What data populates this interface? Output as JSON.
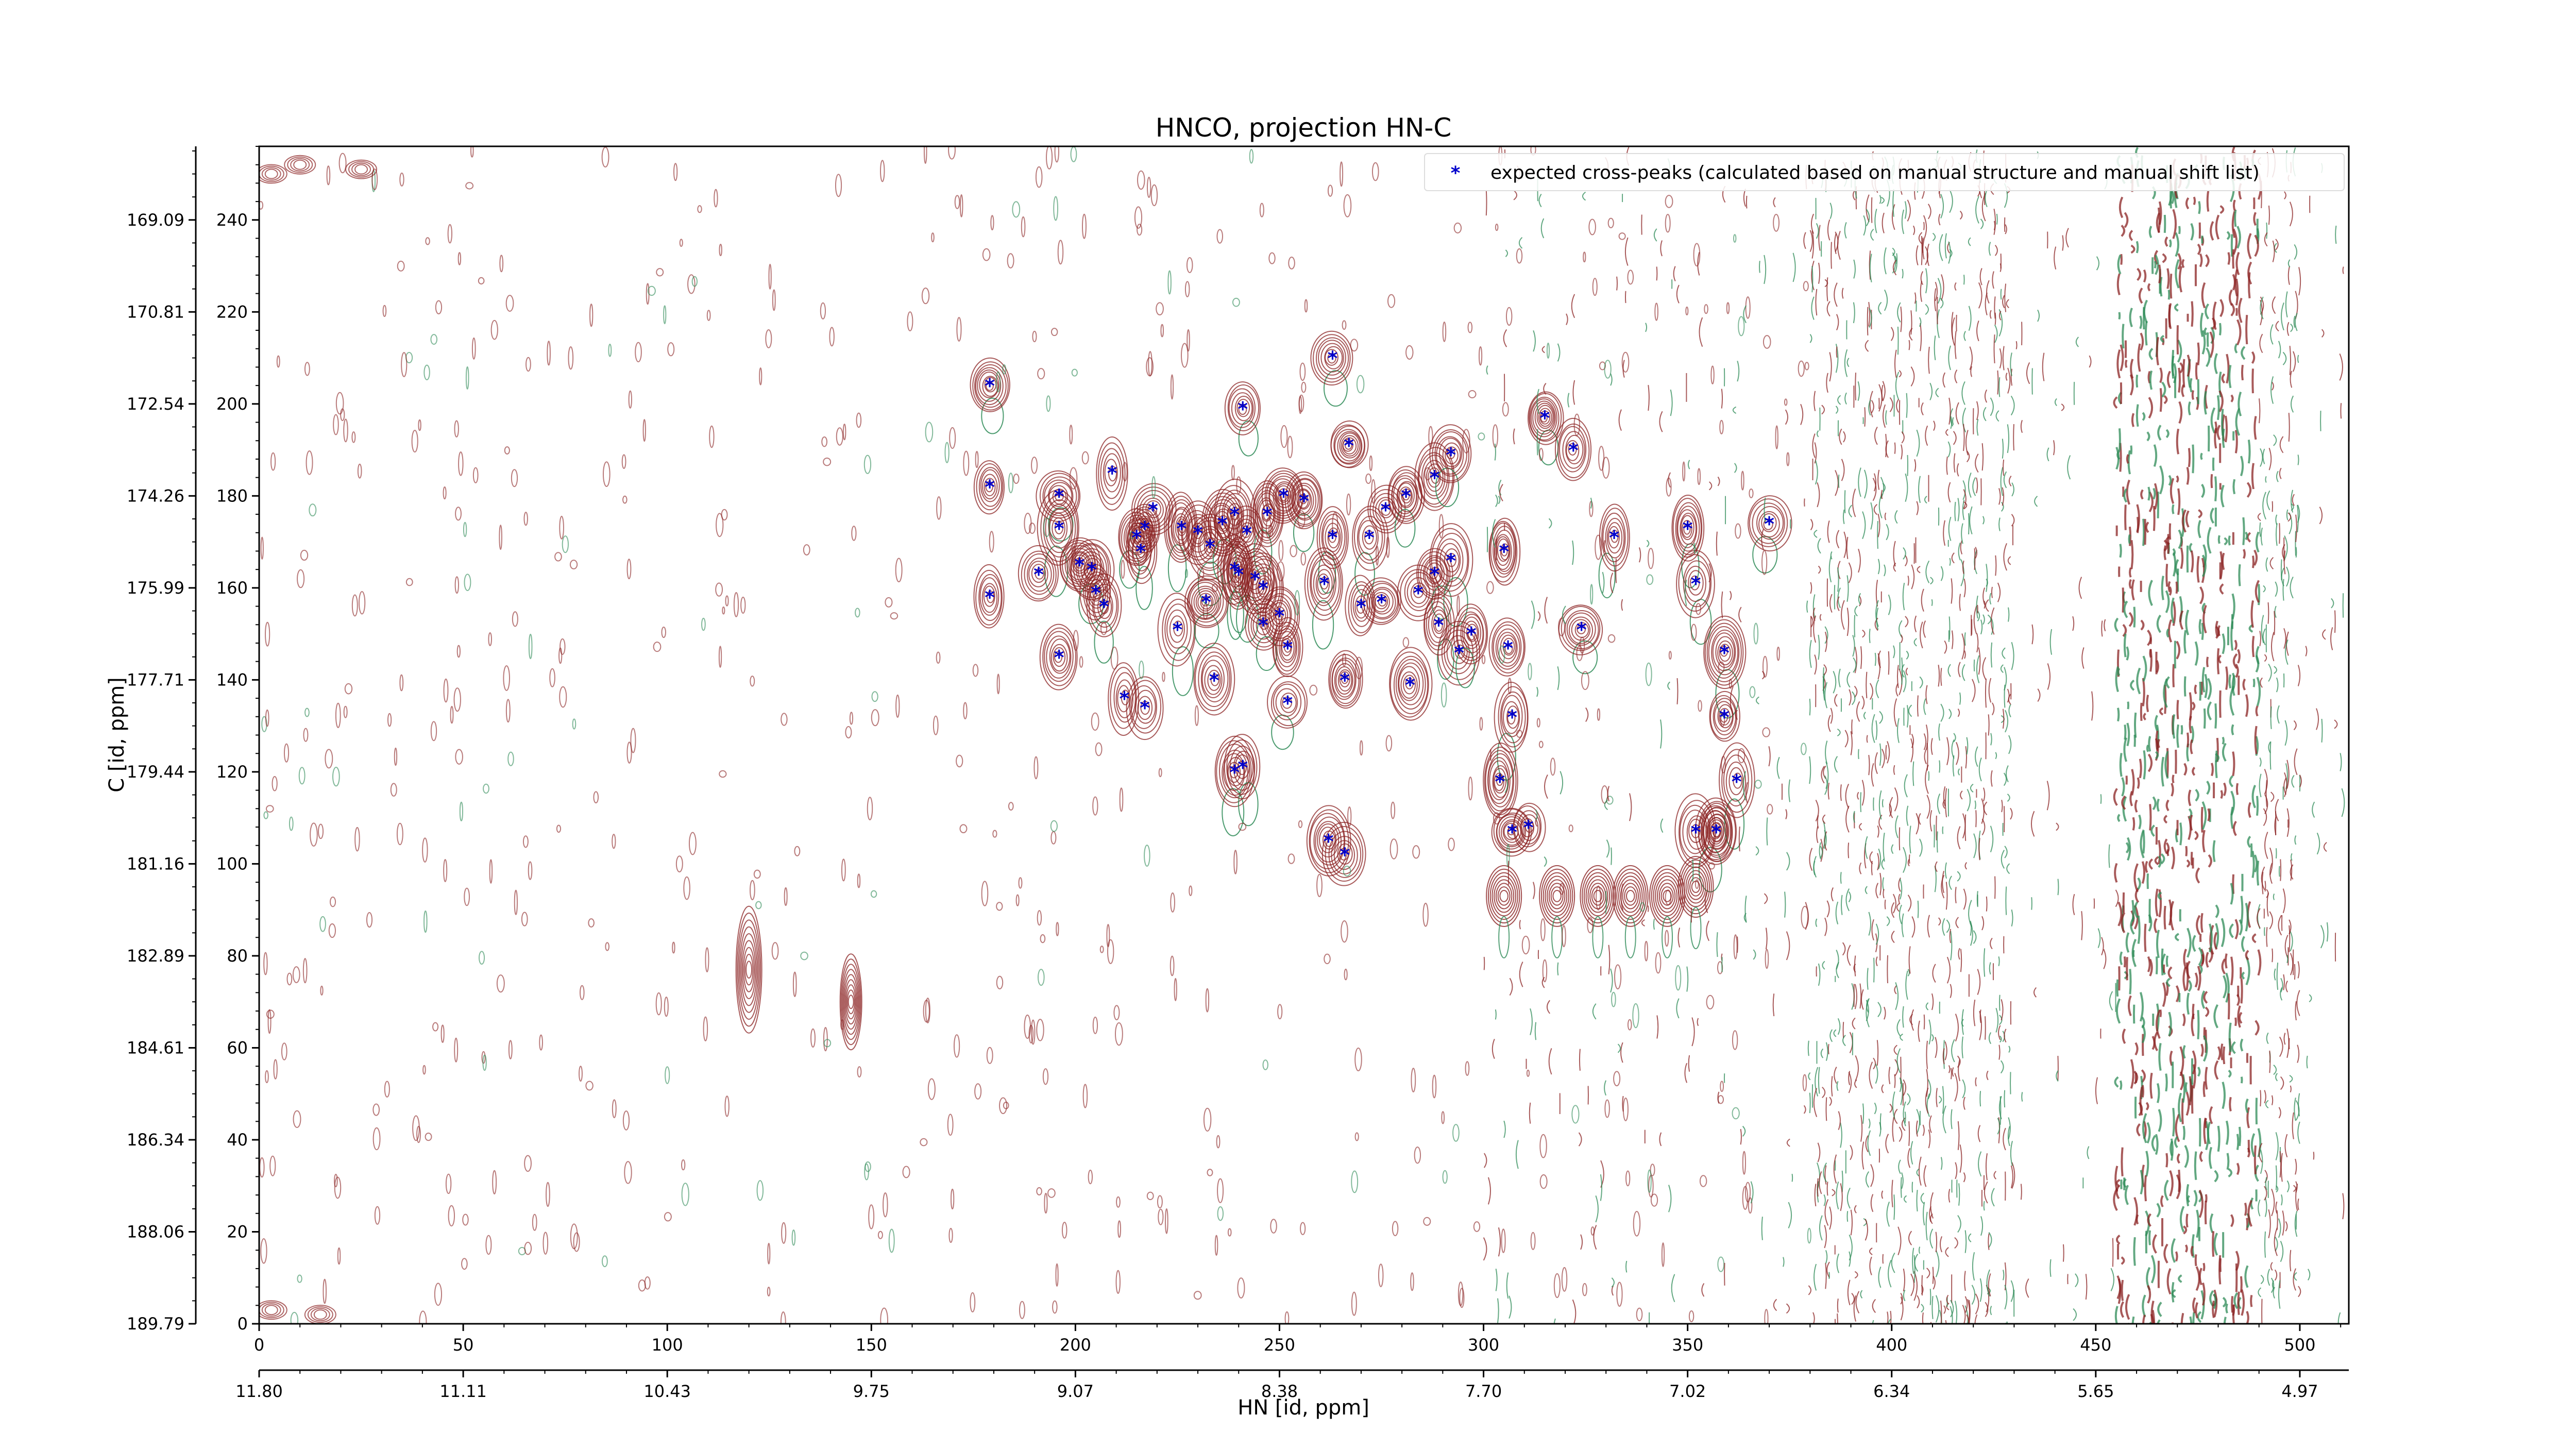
{
  "chart_data": {
    "type": "scatter",
    "title": "HNCO, projection HN-C",
    "xlabel": "HN [id, ppm]",
    "ylabel": "C [id, ppm]",
    "xlim": [
      0,
      512
    ],
    "ylim": [
      0,
      256
    ],
    "x_ticks": [
      0,
      50,
      100,
      150,
      200,
      250,
      300,
      350,
      400,
      450,
      500
    ],
    "x_ppm_ticks": [
      "11.80",
      "11.11",
      "10.43",
      "9.75",
      "9.07",
      "8.38",
      "7.70",
      "7.02",
      "6.34",
      "5.65",
      "4.97"
    ],
    "y_ticks": [
      0,
      20,
      40,
      60,
      80,
      100,
      120,
      140,
      160,
      180,
      200,
      220,
      240
    ],
    "y_ppm_ticks": [
      "189.79",
      "188.06",
      "186.34",
      "184.61",
      "182.89",
      "181.16",
      "179.44",
      "177.71",
      "175.99",
      "174.26",
      "172.54",
      "170.81",
      "169.09"
    ],
    "legend": {
      "label": "expected cross-peaks (calculated based on manual structure and manual shift list)",
      "position": "top-right"
    },
    "colors": {
      "peak_marker": "#0000cc",
      "contour_positive": "#8b2323",
      "contour_negative": "#2e8b57"
    },
    "series": [
      {
        "name": "expected cross-peaks (calculated based on manual structure and manual shift list)",
        "points": [
          [
            179,
            204
          ],
          [
            241,
            199
          ],
          [
            263,
            210
          ],
          [
            179,
            182
          ],
          [
            196,
            180
          ],
          [
            209,
            185
          ],
          [
            196,
            173
          ],
          [
            191,
            163
          ],
          [
            179,
            158
          ],
          [
            219,
            177
          ],
          [
            217,
            173
          ],
          [
            215,
            171
          ],
          [
            216,
            168
          ],
          [
            226,
            173
          ],
          [
            230,
            172
          ],
          [
            233,
            169
          ],
          [
            236,
            174
          ],
          [
            239,
            176
          ],
          [
            242,
            172
          ],
          [
            247,
            176
          ],
          [
            251,
            180
          ],
          [
            256,
            179
          ],
          [
            201,
            165
          ],
          [
            204,
            164
          ],
          [
            205,
            159
          ],
          [
            207,
            156
          ],
          [
            239,
            164
          ],
          [
            240,
            163
          ],
          [
            244,
            162
          ],
          [
            246,
            160
          ],
          [
            250,
            154
          ],
          [
            225,
            151
          ],
          [
            232,
            157
          ],
          [
            246,
            152
          ],
          [
            252,
            147
          ],
          [
            196,
            145
          ],
          [
            212,
            136
          ],
          [
            217,
            134
          ],
          [
            234,
            140
          ],
          [
            252,
            135
          ],
          [
            239,
            120
          ],
          [
            241,
            121
          ],
          [
            262,
            105
          ],
          [
            266,
            102
          ],
          [
            267,
            191
          ],
          [
            263,
            171
          ],
          [
            272,
            171
          ],
          [
            276,
            177
          ],
          [
            281,
            180
          ],
          [
            288,
            184
          ],
          [
            292,
            189
          ],
          [
            261,
            161
          ],
          [
            270,
            156
          ],
          [
            275,
            157
          ],
          [
            284,
            159
          ],
          [
            288,
            163
          ],
          [
            292,
            166
          ],
          [
            289,
            152
          ],
          [
            294,
            146
          ],
          [
            297,
            150
          ],
          [
            266,
            140
          ],
          [
            282,
            139
          ],
          [
            305,
            168
          ],
          [
            306,
            147
          ],
          [
            307,
            132
          ],
          [
            315,
            197
          ],
          [
            322,
            190
          ],
          [
            324,
            151
          ],
          [
            332,
            171
          ],
          [
            350,
            173
          ],
          [
            352,
            161
          ],
          [
            357,
            107
          ],
          [
            359,
            146
          ],
          [
            359,
            132
          ],
          [
            362,
            118
          ],
          [
            370,
            174
          ],
          [
            304,
            118
          ],
          [
            307,
            107
          ],
          [
            311,
            108
          ],
          [
            357,
            107
          ],
          [
            352,
            107
          ]
        ]
      }
    ],
    "grid": false
  }
}
